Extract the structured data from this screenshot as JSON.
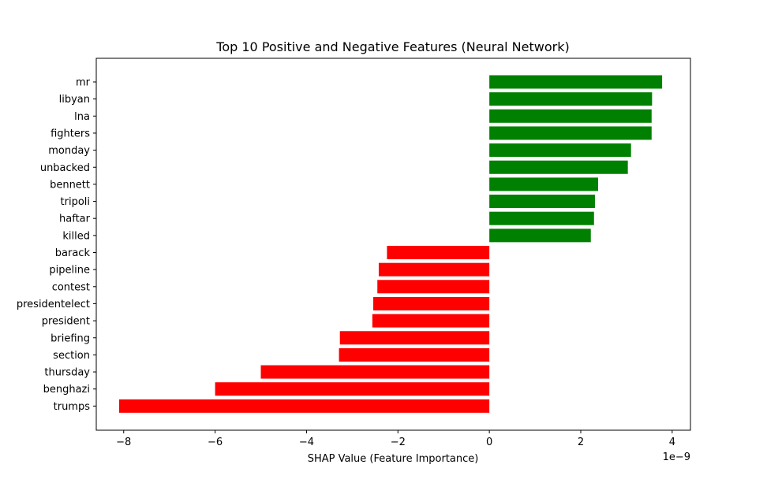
{
  "chart_data": {
    "type": "bar",
    "orientation": "horizontal",
    "title": "Top 10 Positive and Negative Features (Neural Network)",
    "xlabel": "SHAP Value (Feature Importance)",
    "ylabel": "",
    "offset_text": "1e−9",
    "xlim": [
      -8.6,
      4.4
    ],
    "xticks": [
      -8,
      -6,
      -4,
      -2,
      0,
      2,
      4
    ],
    "xtick_labels": [
      "−8",
      "−6",
      "−4",
      "−2",
      "0",
      "2",
      "4"
    ],
    "grid": false,
    "categories": [
      "mr",
      "libyan",
      "lna",
      "fighters",
      "monday",
      "unbacked",
      "bennett",
      "tripoli",
      "haftar",
      "killed",
      "barack",
      "pipeline",
      "contest",
      "presidentelect",
      "president",
      "briefing",
      "section",
      "thursday",
      "benghazi",
      "trumps"
    ],
    "values": [
      3.78,
      3.56,
      3.55,
      3.55,
      3.1,
      3.03,
      2.38,
      2.31,
      2.29,
      2.22,
      -2.24,
      -2.42,
      -2.45,
      -2.54,
      -2.56,
      -3.27,
      -3.29,
      -5.0,
      -6.0,
      -8.1
    ],
    "colors": {
      "positive": "#008000",
      "negative": "#ff0000"
    }
  }
}
